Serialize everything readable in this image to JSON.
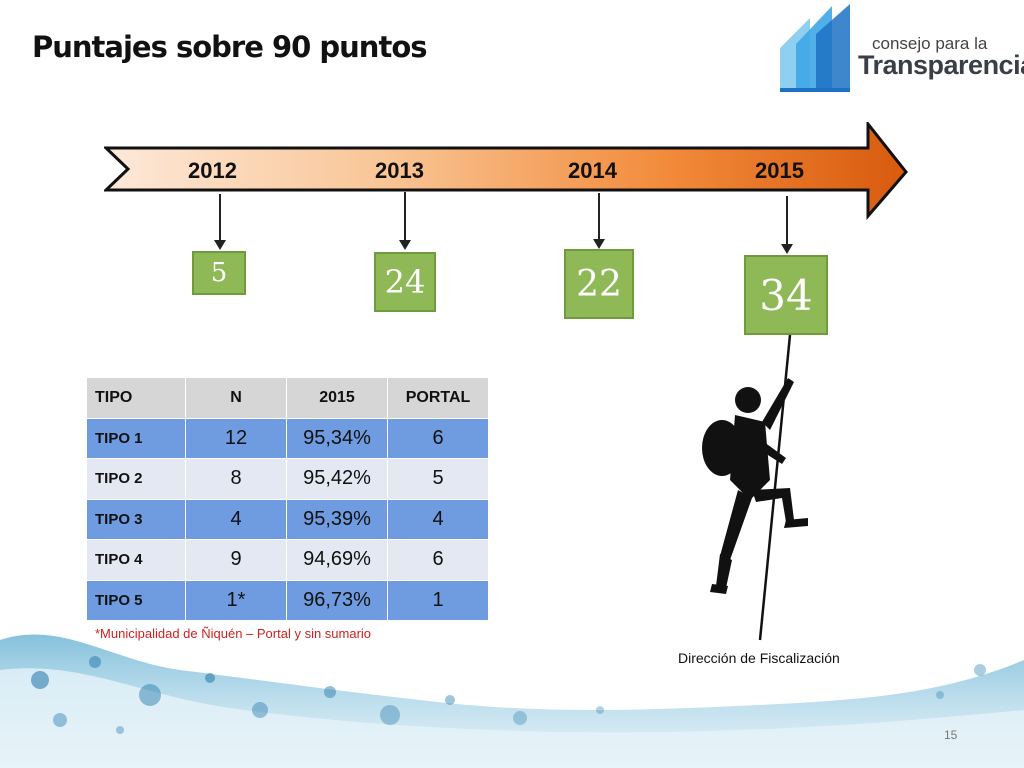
{
  "title": "Puntajes sobre 90 puntos",
  "logo": {
    "line1": "consejo para la",
    "line2": "Transparencia"
  },
  "timeline": {
    "years": [
      "2012",
      "2013",
      "2014",
      "2015"
    ],
    "scores": [
      "5",
      "24",
      "22",
      "34"
    ]
  },
  "table": {
    "headers": [
      "TIPO",
      "N",
      "2015",
      "PORTAL"
    ],
    "rows": [
      {
        "tipo": "TIPO 1",
        "n": "12",
        "pct": "95,34%",
        "portal": "6"
      },
      {
        "tipo": "TIPO 2",
        "n": "8",
        "pct": "95,42%",
        "portal": "5"
      },
      {
        "tipo": "TIPO 3",
        "n": "4",
        "pct": "95,39%",
        "portal": "4"
      },
      {
        "tipo": "TIPO 4",
        "n": "9",
        "pct": "94,69%",
        "portal": "6"
      },
      {
        "tipo": "TIPO 5",
        "n": "1*",
        "pct": "96,73%",
        "portal": "1"
      }
    ]
  },
  "footnote": "*Municipalidad de Ñiquén – Portal y sin sumario",
  "department": "Dirección de Fiscalización",
  "page_number": "15",
  "colors": {
    "score_green": "#8fb857",
    "row_blue": "#6f9be0",
    "row_light": "#e3e8f3",
    "arrow_orange": "#e0661a",
    "logo_blue": "#2e8fd8"
  }
}
